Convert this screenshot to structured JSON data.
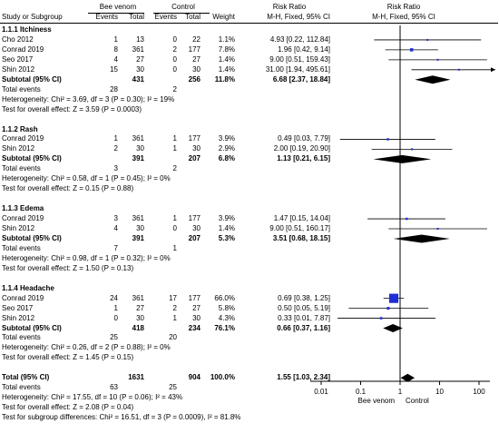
{
  "headers": {
    "exp_group": "Bee venom",
    "ctl_group": "Control",
    "rr_title": "Risk Ratio",
    "plot_title": "Risk Ratio",
    "study": "Study or Subgroup",
    "events": "Events",
    "total": "Total",
    "weight": "Weight",
    "method": "M-H, Fixed, 95% CI",
    "plot_method": "M-H, Fixed, 95% CI"
  },
  "rows": [
    {
      "kind": "group",
      "label": "1.1.1 Itchiness"
    },
    {
      "kind": "study",
      "label": "Cho 2012",
      "e1": "1",
      "n1": "13",
      "e2": "0",
      "n2": "22",
      "w": "1.1%",
      "ci": "4.93 [0.22, 112.84]"
    },
    {
      "kind": "study",
      "label": "Conrad 2019",
      "e1": "8",
      "n1": "361",
      "e2": "2",
      "n2": "177",
      "w": "7.8%",
      "ci": "1.96 [0.42, 9.14]"
    },
    {
      "kind": "study",
      "label": "Seo 2017",
      "e1": "4",
      "n1": "27",
      "e2": "0",
      "n2": "27",
      "w": "1.4%",
      "ci": "9.00 [0.51, 159.43]"
    },
    {
      "kind": "study",
      "label": "Shin 2012",
      "e1": "15",
      "n1": "30",
      "e2": "0",
      "n2": "30",
      "w": "1.4%",
      "ci": "31.00 [1.94, 495.61]"
    },
    {
      "kind": "subtotal",
      "label": "Subtotal (95% CI)",
      "n1": "431",
      "n2": "256",
      "w": "11.8%",
      "ci": "6.68 [2.37, 18.84]"
    },
    {
      "kind": "events",
      "label": "Total events",
      "e1": "28",
      "e2": "2"
    },
    {
      "kind": "text",
      "label": "Heterogeneity: Chi² = 3.69, df = 3 (P = 0.30); I² = 19%"
    },
    {
      "kind": "text",
      "label": "Test for overall effect: Z = 3.59 (P = 0.0003)"
    },
    {
      "kind": "blank"
    },
    {
      "kind": "group",
      "label": "1.1.2 Rash"
    },
    {
      "kind": "study",
      "label": "Conrad 2019",
      "e1": "1",
      "n1": "361",
      "e2": "1",
      "n2": "177",
      "w": "3.9%",
      "ci": "0.49 [0.03, 7.79]"
    },
    {
      "kind": "study",
      "label": "Shin 2012",
      "e1": "2",
      "n1": "30",
      "e2": "1",
      "n2": "30",
      "w": "2.9%",
      "ci": "2.00 [0.19, 20.90]"
    },
    {
      "kind": "subtotal",
      "label": "Subtotal (95% CI)",
      "n1": "391",
      "n2": "207",
      "w": "6.8%",
      "ci": "1.13 [0.21, 6.15]"
    },
    {
      "kind": "events",
      "label": "Total events",
      "e1": "3",
      "e2": "2"
    },
    {
      "kind": "text",
      "label": "Heterogeneity: Chi² = 0.58, df = 1 (P = 0.45); I² = 0%"
    },
    {
      "kind": "text",
      "label": "Test for overall effect: Z = 0.15 (P = 0.88)"
    },
    {
      "kind": "blank"
    },
    {
      "kind": "group",
      "label": "1.1.3 Edema"
    },
    {
      "kind": "study",
      "label": "Conrad 2019",
      "e1": "3",
      "n1": "361",
      "e2": "1",
      "n2": "177",
      "w": "3.9%",
      "ci": "1.47 [0.15, 14.04]"
    },
    {
      "kind": "study",
      "label": "Shin 2012",
      "e1": "4",
      "n1": "30",
      "e2": "0",
      "n2": "30",
      "w": "1.4%",
      "ci": "9.00 [0.51, 160.17]"
    },
    {
      "kind": "subtotal",
      "label": "Subtotal (95% CI)",
      "n1": "391",
      "n2": "207",
      "w": "5.3%",
      "ci": "3.51 [0.68, 18.15]"
    },
    {
      "kind": "events",
      "label": "Total events",
      "e1": "7",
      "e2": "1"
    },
    {
      "kind": "text",
      "label": "Heterogeneity: Chi² = 0.98, df = 1 (P = 0.32); I² = 0%"
    },
    {
      "kind": "text",
      "label": "Test for overall effect: Z = 1.50 (P = 0.13)"
    },
    {
      "kind": "blank"
    },
    {
      "kind": "group",
      "label": "1.1.4 Headache"
    },
    {
      "kind": "study",
      "label": "Conrad 2019",
      "e1": "24",
      "n1": "361",
      "e2": "17",
      "n2": "177",
      "w": "66.0%",
      "ci": "0.69 [0.38, 1.25]"
    },
    {
      "kind": "study",
      "label": "Seo 2017",
      "e1": "1",
      "n1": "27",
      "e2": "2",
      "n2": "27",
      "w": "5.8%",
      "ci": "0.50 [0.05, 5.19]"
    },
    {
      "kind": "study",
      "label": "Shin 2012",
      "e1": "0",
      "n1": "30",
      "e2": "1",
      "n2": "30",
      "w": "4.3%",
      "ci": "0.33 [0.01, 7.87]"
    },
    {
      "kind": "subtotal",
      "label": "Subtotal (95% CI)",
      "n1": "418",
      "n2": "234",
      "w": "76.1%",
      "ci": "0.66 [0.37, 1.16]"
    },
    {
      "kind": "events",
      "label": "Total events",
      "e1": "25",
      "e2": "20"
    },
    {
      "kind": "text",
      "label": "Heterogeneity: Chi² = 0.26, df = 2 (P = 0.88); I² = 0%"
    },
    {
      "kind": "text",
      "label": "Test for overall effect: Z = 1.45 (P = 0.15)"
    },
    {
      "kind": "blank"
    },
    {
      "kind": "subtotal",
      "label": "Total (95% CI)",
      "n1": "1631",
      "n2": "904",
      "w": "100.0%",
      "ci": "1.55 [1.03, 2.34]"
    },
    {
      "kind": "events",
      "label": "Total events",
      "e1": "63",
      "e2": "25"
    },
    {
      "kind": "text",
      "label": "Heterogeneity: Chi² = 17.55, df = 10 (P = 0.06); I² = 43%"
    },
    {
      "kind": "text",
      "label": "Test for overall effect: Z = 2.08 (P = 0.04)"
    },
    {
      "kind": "text",
      "label": "Test for subgroup differences: Chi² = 16.51, df = 3 (P = 0.0009), I² = 81.8%"
    }
  ],
  "chart_data": {
    "type": "forest",
    "scale": "log",
    "xlim": [
      0.005,
      200
    ],
    "xticks": [
      "0.01",
      "0.1",
      "1",
      "10",
      "100"
    ],
    "xtick_values": [
      0.01,
      0.1,
      1,
      10,
      100
    ],
    "favours_left": "Bee venom",
    "favours_right": "Control",
    "colors": {
      "study_marker": "#1f2dd6",
      "summary": "#000000"
    },
    "studies": [
      {
        "group": "1.1.1 Itchiness",
        "study": "Cho 2012",
        "rr": 4.93,
        "lo": 0.22,
        "hi": 112.84,
        "weight": 1.1
      },
      {
        "group": "1.1.1 Itchiness",
        "study": "Conrad 2019",
        "rr": 1.96,
        "lo": 0.42,
        "hi": 9.14,
        "weight": 7.8
      },
      {
        "group": "1.1.1 Itchiness",
        "study": "Seo 2017",
        "rr": 9.0,
        "lo": 0.51,
        "hi": 159.43,
        "weight": 1.4
      },
      {
        "group": "1.1.1 Itchiness",
        "study": "Shin 2012",
        "rr": 31.0,
        "lo": 1.94,
        "hi": 495.61,
        "weight": 1.4
      },
      {
        "group": "1.1.2 Rash",
        "study": "Conrad 2019",
        "rr": 0.49,
        "lo": 0.03,
        "hi": 7.79,
        "weight": 3.9
      },
      {
        "group": "1.1.2 Rash",
        "study": "Shin 2012",
        "rr": 2.0,
        "lo": 0.19,
        "hi": 20.9,
        "weight": 2.9
      },
      {
        "group": "1.1.3 Edema",
        "study": "Conrad 2019",
        "rr": 1.47,
        "lo": 0.15,
        "hi": 14.04,
        "weight": 3.9
      },
      {
        "group": "1.1.3 Edema",
        "study": "Shin 2012",
        "rr": 9.0,
        "lo": 0.51,
        "hi": 160.17,
        "weight": 1.4
      },
      {
        "group": "1.1.4 Headache",
        "study": "Conrad 2019",
        "rr": 0.69,
        "lo": 0.38,
        "hi": 1.25,
        "weight": 66.0
      },
      {
        "group": "1.1.4 Headache",
        "study": "Seo 2017",
        "rr": 0.5,
        "lo": 0.05,
        "hi": 5.19,
        "weight": 5.8
      },
      {
        "group": "1.1.4 Headache",
        "study": "Shin 2012",
        "rr": 0.33,
        "lo": 0.01,
        "hi": 7.87,
        "weight": 4.3
      }
    ],
    "summaries": [
      {
        "label": "1.1.1 Itchiness",
        "rr": 6.68,
        "lo": 2.37,
        "hi": 18.84
      },
      {
        "label": "1.1.2 Rash",
        "rr": 1.13,
        "lo": 0.21,
        "hi": 6.15
      },
      {
        "label": "1.1.3 Edema",
        "rr": 3.51,
        "lo": 0.68,
        "hi": 18.15
      },
      {
        "label": "1.1.4 Headache",
        "rr": 0.66,
        "lo": 0.37,
        "hi": 1.16
      },
      {
        "label": "Total (95% CI)",
        "rr": 1.55,
        "lo": 1.03,
        "hi": 2.34
      }
    ]
  }
}
